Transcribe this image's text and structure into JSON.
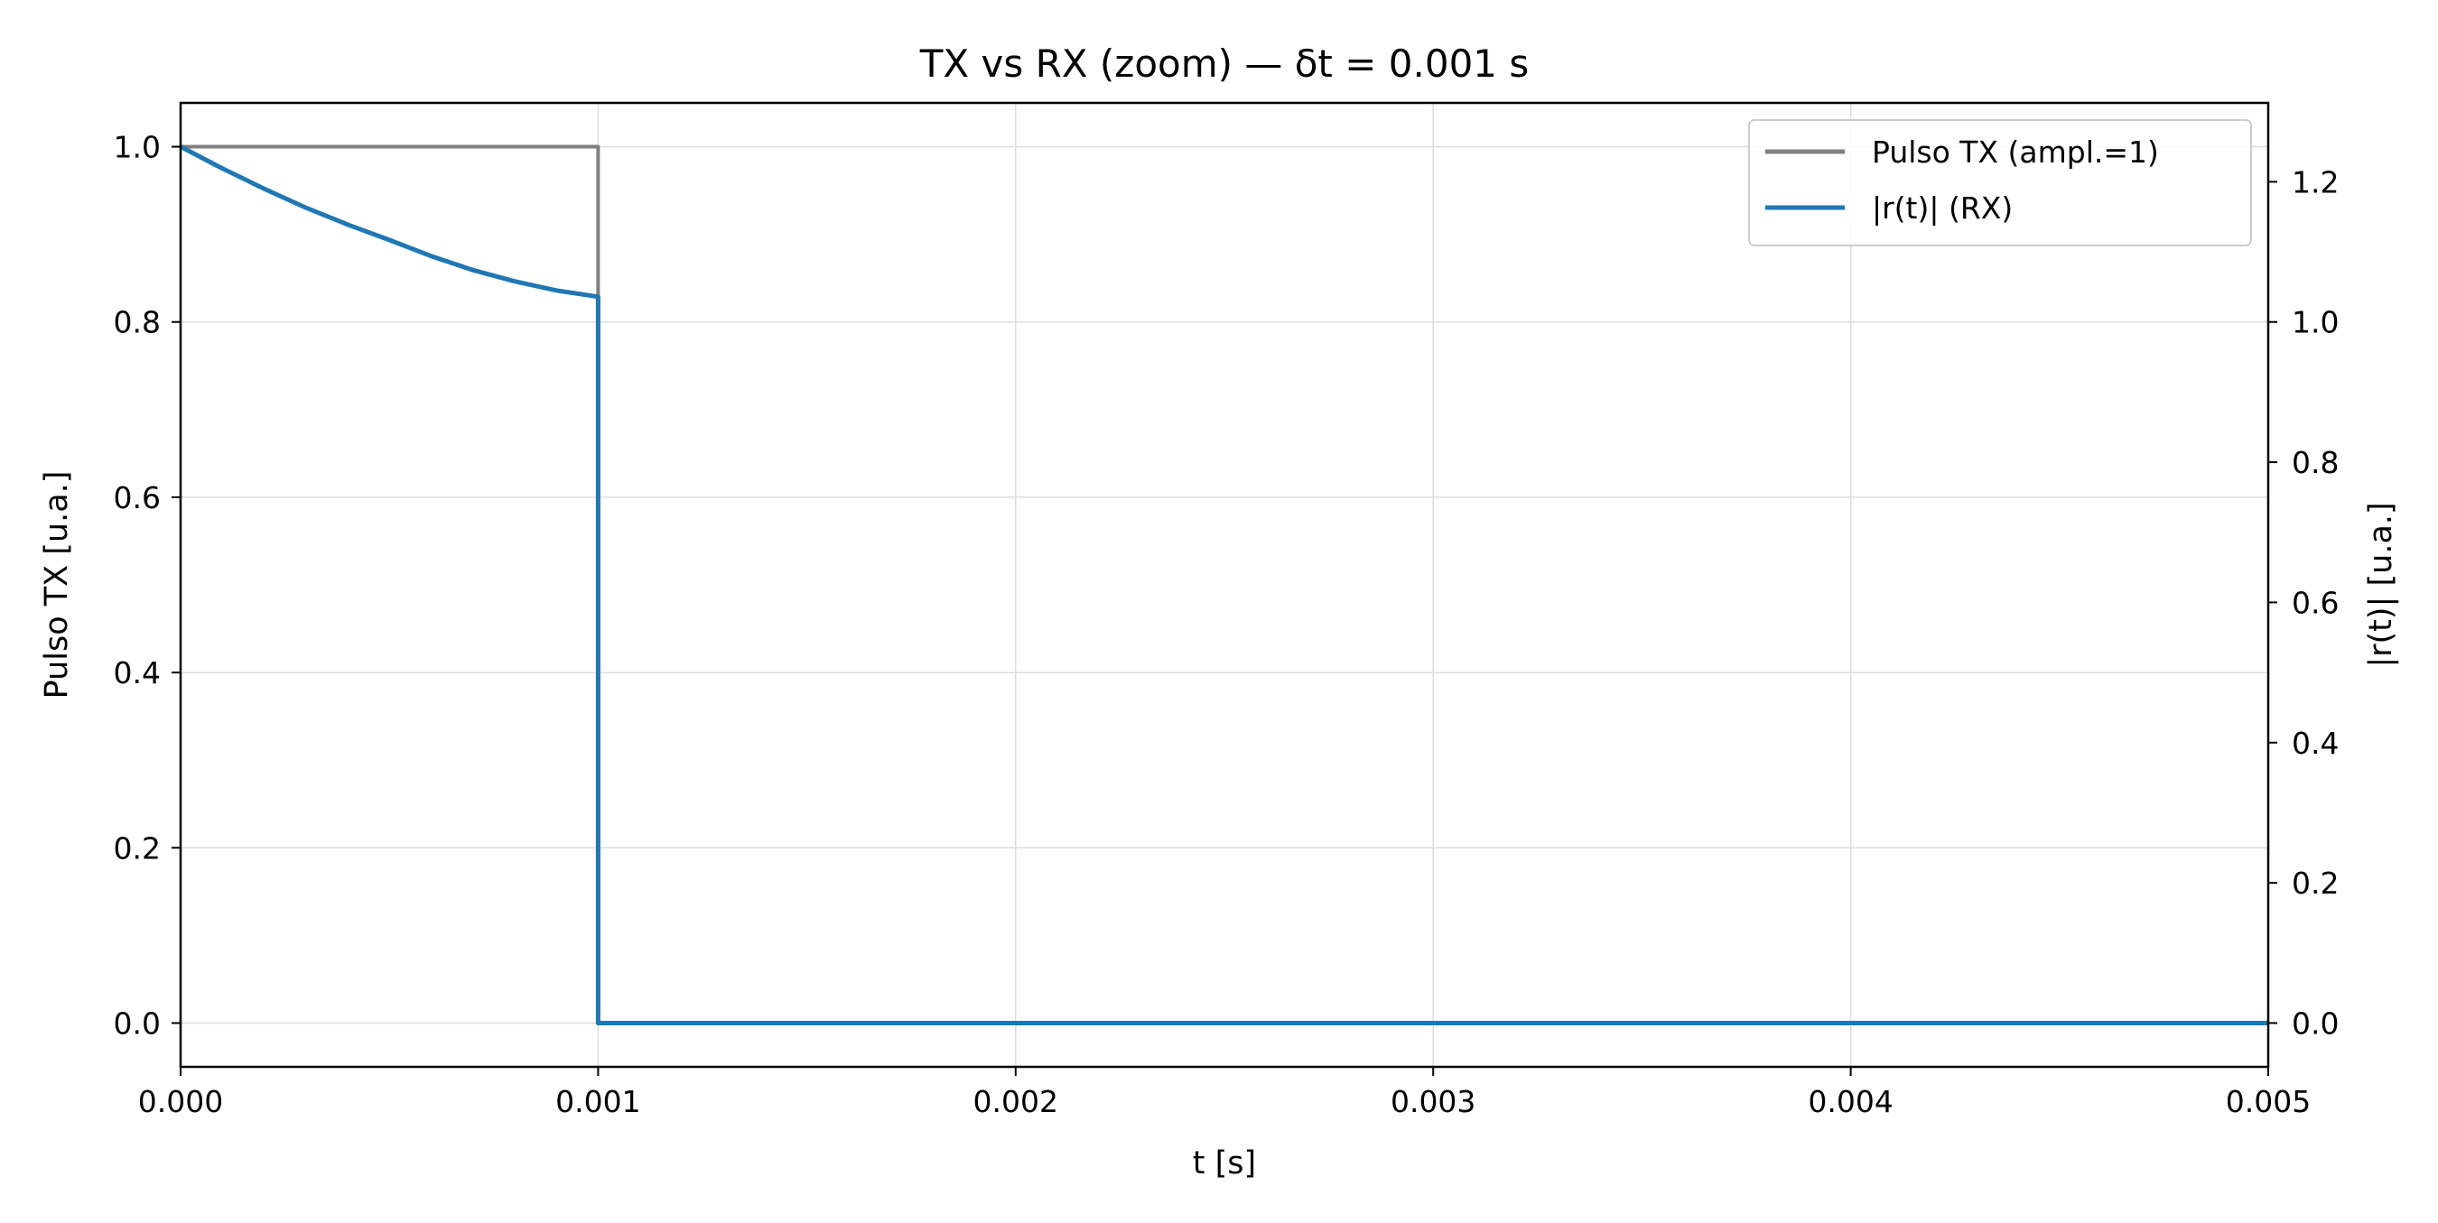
{
  "chart_data": {
    "type": "line",
    "title": "TX vs RX (zoom) — δt = 0.001 s",
    "xlabel": "t [s]",
    "ylabel_left": "Pulso TX [u.a.]",
    "ylabel_right": "|r(t)| [u.a.]",
    "xlim": [
      0,
      0.005
    ],
    "ylim_left": [
      -0.05,
      1.05
    ],
    "ylim_right": [
      -0.0625,
      1.3125
    ],
    "x_ticks": [
      "0.000",
      "0.001",
      "0.002",
      "0.003",
      "0.004",
      "0.005"
    ],
    "y_ticks_left": [
      "0.0",
      "0.2",
      "0.4",
      "0.6",
      "0.8",
      "1.0"
    ],
    "y_ticks_right": [
      "0.0",
      "0.2",
      "0.4",
      "0.6",
      "0.8",
      "1.0",
      "1.2"
    ],
    "grid": true,
    "legend_position": "upper right",
    "series": [
      {
        "name": "Pulso TX (ampl.=1)",
        "axis": "left",
        "color": "#808080",
        "x": [
          0,
          0.001,
          0.001,
          0.005
        ],
        "y": [
          1,
          1,
          0,
          0
        ]
      },
      {
        "name": "|r(t)| (RX)",
        "axis": "right",
        "color": "#1f77b4",
        "x": [
          0,
          0.0001,
          0.0002,
          0.0003,
          0.0004,
          0.0005,
          0.0006,
          0.0007,
          0.0008,
          0.0009,
          0.001,
          0.001,
          0.005
        ],
        "y": [
          1.25,
          1.219,
          1.19,
          1.163,
          1.139,
          1.117,
          1.094,
          1.074,
          1.058,
          1.045,
          1.036,
          0,
          0
        ]
      }
    ]
  }
}
